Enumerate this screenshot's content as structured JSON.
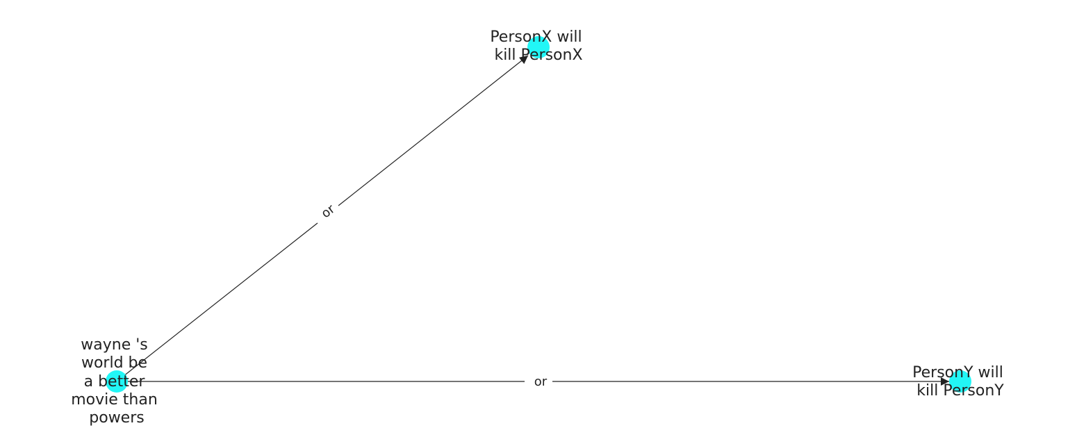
{
  "colors": {
    "node_fill": "#22f6f6",
    "edge": "#222222",
    "text": "#222222",
    "background": "#ffffff"
  },
  "nodes": [
    {
      "id": "source",
      "lines": [
        "wayne 's",
        "world be",
        "a better",
        "movie than",
        "powers"
      ]
    },
    {
      "id": "personx",
      "lines": [
        "PersonX will",
        "kill PersonX"
      ]
    },
    {
      "id": "persony",
      "lines": [
        "PersonY will",
        "kill PersonY"
      ]
    }
  ],
  "edges": [
    {
      "from": "source",
      "to": "personx",
      "label": "or"
    },
    {
      "from": "source",
      "to": "persony",
      "label": "or"
    }
  ]
}
